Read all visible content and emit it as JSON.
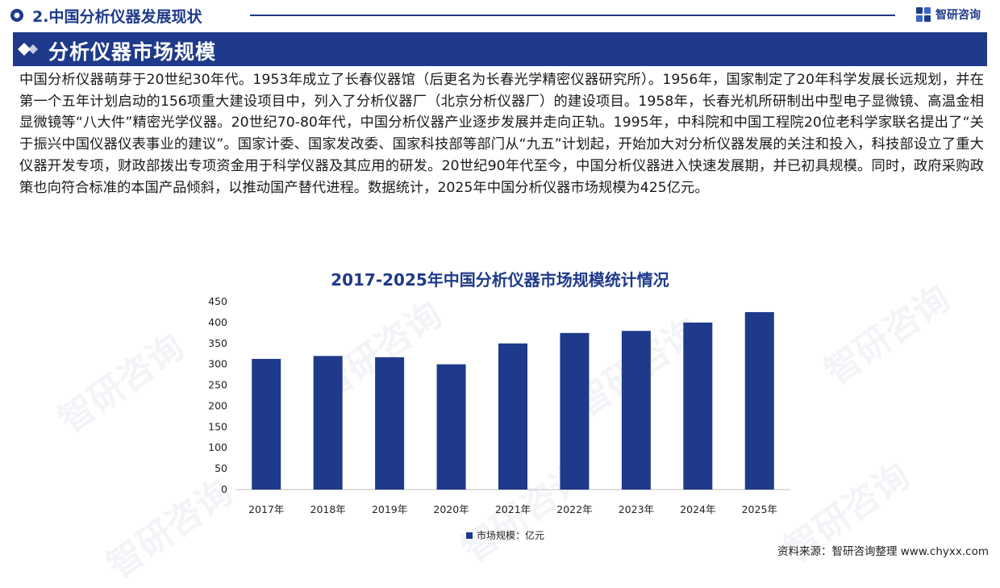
{
  "header": {
    "section_title": "2.中国分析仪器发展现状",
    "brand_name": "智研咨询"
  },
  "banner": {
    "title": "分析仪器市场规模"
  },
  "body": {
    "paragraph": "中国分析仪器萌芽于20世纪30年代。1953年成立了长春仪器馆（后更名为长春光学精密仪器研究所）。1956年，国家制定了20年科学发展长远规划，并在第一个五年计划启动的156项重大建设项目中，列入了分析仪器厂（北京分析仪器厂）的建设项目。1958年，长春光机所研制出中型电子显微镜、高温金相显微镜等“八大件”精密光学仪器。20世纪70-80年代，中国分析仪器产业逐步发展并走向正轨。1995年，中科院和中国工程院20位老科学家联名提出了“关于振兴中国仪器仪表事业的建议”。国家计委、国家发改委、国家科技部等部门从“九五”计划起，开始加大对分析仪器发展的关注和投入，科技部设立了重大仪器开发专项，财政部拨出专项资金用于科学仪器及其应用的研发。20世纪90年代至今，中国分析仪器进入快速发展期，并已初具规模。同时，政府采购政策也向符合标准的本国产品倾斜，以推动国产替代进程。数据统计，2025年中国分析仪器市场规模为425亿元。"
  },
  "chart_data": {
    "type": "bar",
    "title": "2017-2025年中国分析仪器市场规模统计情况",
    "categories": [
      "2017年",
      "2018年",
      "2019年",
      "2020年",
      "2021年",
      "2022年",
      "2023年",
      "2024年",
      "2025年"
    ],
    "series": [
      {
        "name": "市场规模：亿元",
        "values": [
          313,
          320,
          317,
          300,
          350,
          375,
          380,
          400,
          425
        ]
      }
    ],
    "ylim": [
      0,
      450
    ],
    "yticks": [
      0,
      50,
      100,
      150,
      200,
      250,
      300,
      350,
      400,
      450
    ],
    "xlabel": "",
    "ylabel": "",
    "legend_position": "bottom",
    "grid": false,
    "bar_color": "#1f3a8a"
  },
  "source": "资料来源：智研咨询整理  www.chyxx.com",
  "watermark_text": "智研咨询",
  "colors": {
    "primary": "#1f3a8a",
    "text": "#1a1a1a"
  }
}
